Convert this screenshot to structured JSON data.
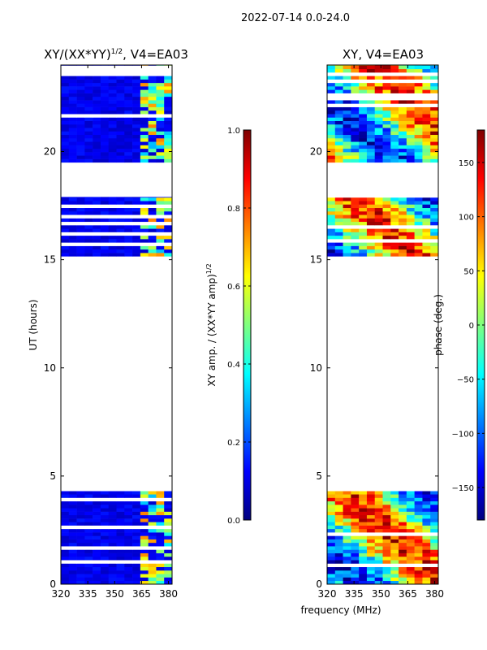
{
  "figure": {
    "suptitle": "2022-07-14 0.0-24.0",
    "xlabel_shared": "frequency (MHz)"
  },
  "chart_data": [
    {
      "type": "heatmap",
      "title": "XY/(XX*YY)",
      "title_sup": "1/2",
      "title_suffix": ", V4=EA03",
      "xlabel": "",
      "ylabel": "UT (hours)",
      "xlim": [
        320,
        382
      ],
      "ylim": [
        0,
        24
      ],
      "xticks": [
        320,
        335,
        350,
        365,
        380
      ],
      "yticks": [
        0,
        5,
        10,
        15,
        20
      ],
      "data_bands_hours": [
        [
          0,
          4.3
        ],
        [
          15.0,
          17.9
        ],
        [
          19.5,
          24.0
        ]
      ],
      "colorbar": {
        "label": "XY amp. / (XX*YY amp)",
        "label_sup": "1/2",
        "ticks": [
          "0.0",
          "0.2",
          "0.4",
          "0.6",
          "0.8",
          "1.0"
        ],
        "range": [
          0.0,
          1.0
        ],
        "colormap": "jet"
      }
    },
    {
      "type": "heatmap",
      "title": "XY, V4=EA03",
      "xlabel": "frequency (MHz)",
      "ylabel": "",
      "xlim": [
        320,
        382
      ],
      "ylim": [
        0,
        24
      ],
      "xticks": [
        320,
        335,
        350,
        365,
        380
      ],
      "yticks": [
        0,
        5,
        10,
        15,
        20
      ],
      "data_bands_hours": [
        [
          0,
          4.3
        ],
        [
          15.0,
          17.9
        ],
        [
          19.5,
          24.0
        ]
      ],
      "colorbar": {
        "label": "phase (deg.)",
        "ticks": [
          "-150",
          "-100",
          "-50",
          "0",
          "50",
          "100",
          "150"
        ],
        "range": [
          -180,
          180
        ],
        "colormap": "jet"
      }
    }
  ],
  "colors": {
    "jet": [
      "#00007f",
      "#0000ff",
      "#007fff",
      "#00ffff",
      "#7fff7f",
      "#ffff00",
      "#ff7f00",
      "#ff0000",
      "#7f0000"
    ],
    "amp_base": "#0a1aa8",
    "gap": "#ffffff"
  }
}
